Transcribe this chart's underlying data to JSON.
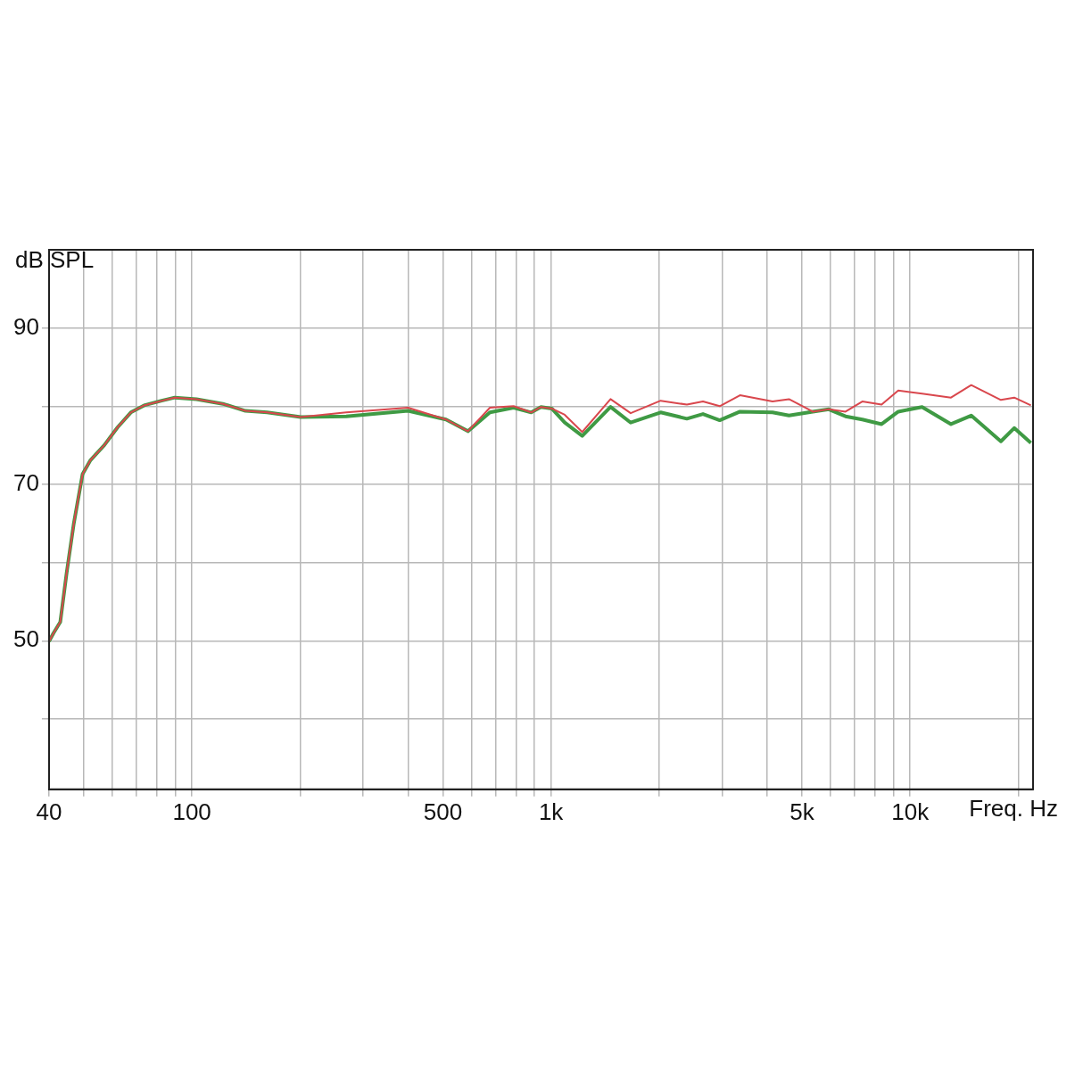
{
  "chart_data": {
    "type": "line",
    "xlabel": "Freq. Hz",
    "ylabel": "dB SPL",
    "log": "x",
    "grid": true,
    "legend": false,
    "marker": "none",
    "line_style": "solid",
    "xlim": [
      40,
      22000
    ],
    "ylim": [
      31,
      100
    ],
    "xticks": [
      40,
      {
        "value": 50,
        "label": null
      },
      {
        "value": 60,
        "label": null
      },
      {
        "value": 70,
        "label": null
      },
      {
        "value": 80,
        "label": null
      },
      {
        "value": 90,
        "label": null
      },
      100,
      {
        "value": 200,
        "label": null
      },
      {
        "value": 300,
        "label": null
      },
      {
        "value": 400,
        "label": null
      },
      500,
      {
        "value": 600,
        "label": null
      },
      {
        "value": 700,
        "label": null
      },
      {
        "value": 800,
        "label": null
      },
      {
        "value": 900,
        "label": null
      },
      {
        "value": 1000,
        "label": "1k"
      },
      {
        "value": 2000,
        "label": null
      },
      {
        "value": 3000,
        "label": null
      },
      {
        "value": 4000,
        "label": null
      },
      {
        "value": 5000,
        "label": "5k"
      },
      {
        "value": 6000,
        "label": null
      },
      {
        "value": 7000,
        "label": null
      },
      {
        "value": 8000,
        "label": null
      },
      {
        "value": 9000,
        "label": null
      },
      {
        "value": 10000,
        "label": "10k"
      },
      {
        "value": 20000,
        "label": null
      }
    ],
    "yticks": [
      {
        "value": 40,
        "label": null
      },
      50,
      {
        "value": 60,
        "label": null
      },
      70,
      {
        "value": 80,
        "label": null
      },
      90
    ],
    "x": [
      40,
      41.2,
      43,
      44.8,
      46.9,
      49.6,
      52.2,
      57,
      62.1,
      67.6,
      73.6,
      82.4,
      89.6,
      103,
      122,
      141,
      162,
      201,
      269,
      400,
      510,
      587,
      676,
      787,
      881,
      938,
      1005,
      1092,
      1222,
      1465,
      1667,
      2020,
      2390,
      2650,
      2950,
      3360,
      4140,
      4600,
      5360,
      5940,
      6610,
      7360,
      8330,
      9270,
      10800,
      13000,
      14800,
      17900,
      19500,
      21700
    ],
    "series": [
      {
        "color": "#d9474d",
        "values": [
          49.9,
          51,
          52.4,
          58.7,
          65,
          71.3,
          73.1,
          75,
          77.3,
          79.2,
          80.1,
          80.7,
          81.1,
          80.9,
          80.3,
          79.4,
          79.2,
          78.6,
          79.2,
          79.8,
          78.3,
          76.8,
          79.8,
          80,
          79.2,
          79.9,
          79.7,
          78.9,
          76.7,
          80.9,
          79.1,
          80.7,
          80.2,
          80.6,
          80,
          81.4,
          80.6,
          80.9,
          79.3,
          79.6,
          79.3,
          80.6,
          80.2,
          82,
          81.6,
          81.1,
          82.7,
          80.8,
          81.1,
          80.1
        ]
      },
      {
        "color": "#3f9a44",
        "values": [
          49.9,
          51,
          52.4,
          58.7,
          65,
          71.3,
          73.1,
          75,
          77.3,
          79.2,
          80.1,
          80.7,
          81.1,
          80.9,
          80.3,
          79.4,
          79.2,
          78.6,
          78.7,
          79.4,
          78.3,
          76.8,
          79.2,
          79.8,
          79.2,
          79.9,
          79.7,
          77.9,
          76.2,
          79.9,
          77.9,
          79.2,
          78.4,
          79,
          78.2,
          79.3,
          79.2,
          78.8,
          79.3,
          79.6,
          78.7,
          78.3,
          77.7,
          79.3,
          79.9,
          77.7,
          78.8,
          75.5,
          77.2,
          75.3
        ]
      }
    ]
  }
}
